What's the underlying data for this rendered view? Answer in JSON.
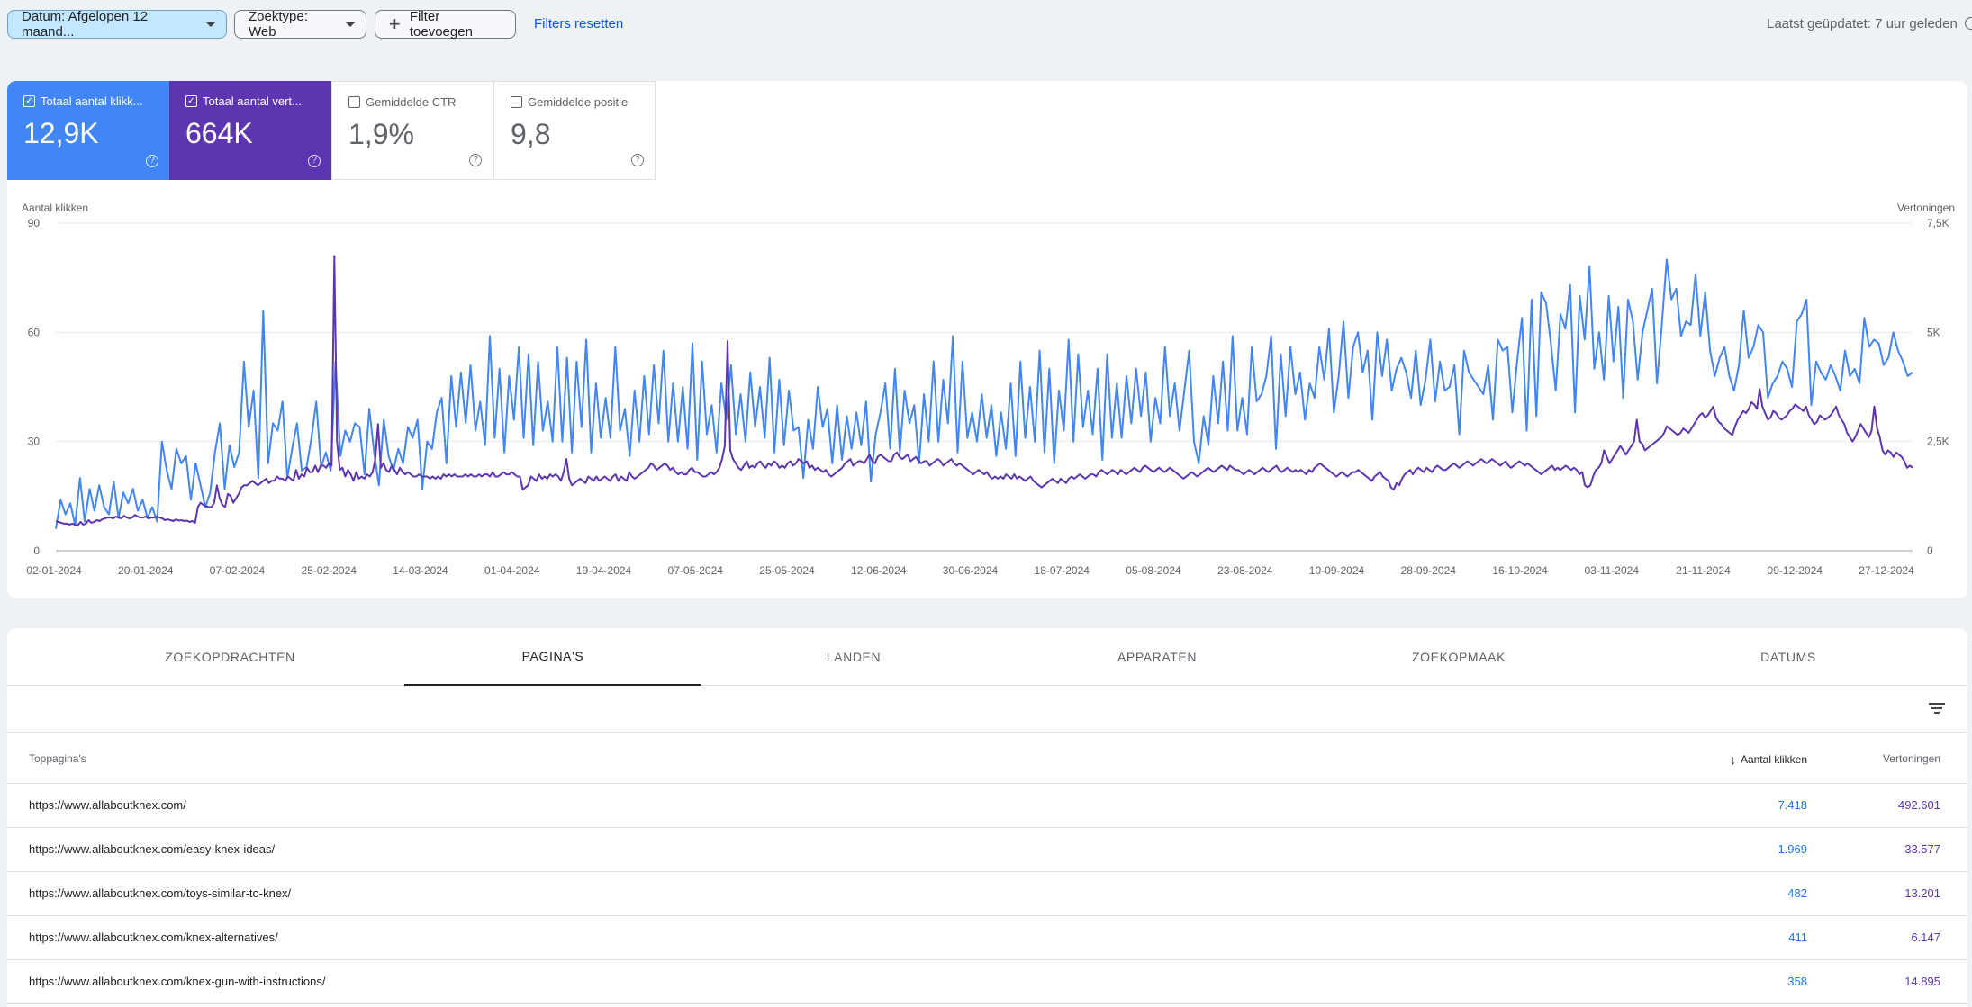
{
  "filters": {
    "date_chip": "Datum: Afgelopen 12 maand...",
    "searchtype_chip": "Zoektype: Web",
    "add_filter": "Filter toevoegen",
    "reset": "Filters resetten",
    "last_updated": "Laatst geüpdatet: 7 uur geleden"
  },
  "metrics": [
    {
      "label": "Totaal aantal klikk...",
      "value": "12,9K",
      "checked": true,
      "color": "#4285f4"
    },
    {
      "label": "Totaal aantal vert...",
      "value": "664K",
      "checked": true,
      "color": "#5e35b1"
    },
    {
      "label": "Gemiddelde CTR",
      "value": "1,9%",
      "checked": false
    },
    {
      "label": "Gemiddelde positie",
      "value": "9,8",
      "checked": false
    }
  ],
  "chart_data": {
    "type": "line",
    "left_axis_label": "Aantal klikken",
    "right_axis_label": "Vertoningen",
    "left_ticks": [
      "90",
      "60",
      "30",
      "0"
    ],
    "right_ticks": [
      "7,5K",
      "5K",
      "2,5K",
      "0"
    ],
    "ylim_left": [
      0,
      90
    ],
    "ylim_right": [
      0,
      7500
    ],
    "x_tick_labels": [
      "02-01-2024",
      "20-01-2024",
      "07-02-2024",
      "25-02-2024",
      "14-03-2024",
      "01-04-2024",
      "19-04-2024",
      "07-05-2024",
      "25-05-2024",
      "12-06-2024",
      "30-06-2024",
      "18-07-2024",
      "05-08-2024",
      "23-08-2024",
      "10-09-2024",
      "28-09-2024",
      "16-10-2024",
      "03-11-2024",
      "21-11-2024",
      "09-12-2024",
      "27-12-2024"
    ],
    "series": [
      {
        "name": "Aantal klikken",
        "color": "#4285f4",
        "axis": "left",
        "values": [
          6,
          14,
          10,
          13,
          7,
          20,
          8,
          17,
          11,
          18,
          12,
          10,
          19,
          9,
          16,
          13,
          17,
          11,
          14,
          9,
          12,
          8,
          30,
          22,
          17,
          28,
          24,
          26,
          14,
          24,
          18,
          12,
          16,
          27,
          35,
          17,
          29,
          23,
          27,
          52,
          34,
          44,
          20,
          66,
          24,
          35,
          33,
          41,
          20,
          28,
          35,
          22,
          23,
          31,
          41,
          23,
          27,
          22,
          52,
          26,
          33,
          30,
          35,
          34,
          21,
          39,
          27,
          18,
          36,
          26,
          22,
          28,
          24,
          34,
          31,
          36,
          17,
          30,
          28,
          38,
          42,
          24,
          48,
          34,
          49,
          35,
          51,
          33,
          41,
          29,
          59,
          31,
          50,
          27,
          48,
          36,
          56,
          31,
          54,
          29,
          52,
          33,
          41,
          30,
          56,
          30,
          53,
          27,
          52,
          34,
          58,
          27,
          46,
          31,
          42,
          31,
          56,
          33,
          39,
          26,
          44,
          30,
          48,
          32,
          51,
          35,
          55,
          30,
          46,
          30,
          45,
          28,
          57,
          25,
          52,
          32,
          40,
          27,
          46,
          36,
          51,
          32,
          43,
          30,
          49,
          34,
          45,
          31,
          53,
          27,
          47,
          29,
          44,
          33,
          34,
          20,
          36,
          28,
          45,
          34,
          39,
          24,
          40,
          25,
          37,
          28,
          38,
          29,
          41,
          19,
          32,
          38,
          46,
          28,
          50,
          27,
          44,
          35,
          40,
          24,
          43,
          30,
          52,
          30,
          47,
          35,
          59,
          27,
          52,
          31,
          38,
          30,
          43,
          31,
          40,
          26,
          38,
          28,
          46,
          26,
          52,
          31,
          45,
          30,
          55,
          27,
          50,
          24,
          44,
          33,
          58,
          30,
          54,
          34,
          44,
          32,
          50,
          25,
          54,
          31,
          46,
          31,
          48,
          35,
          50,
          37,
          49,
          30,
          42,
          35,
          56,
          37,
          46,
          33,
          44,
          55,
          30,
          24,
          37,
          29,
          48,
          35,
          52,
          33,
          59,
          33,
          42,
          32,
          56,
          41,
          43,
          48,
          59,
          28,
          54,
          37,
          56,
          43,
          49,
          36,
          46,
          42,
          56,
          47,
          61,
          38,
          48,
          63,
          42,
          56,
          60,
          49,
          55,
          36,
          60,
          48,
          58,
          44,
          50,
          53,
          49,
          42,
          55,
          40,
          47,
          58,
          41,
          52,
          44,
          45,
          51,
          32,
          55,
          49,
          47,
          45,
          43,
          51,
          36,
          58,
          55,
          56,
          38,
          52,
          64,
          33,
          69,
          37,
          71,
          68,
          57,
          44,
          65,
          61,
          73,
          38,
          70,
          58,
          78,
          50,
          60,
          47,
          70,
          52,
          67,
          42,
          69,
          63,
          47,
          60,
          66,
          72,
          46,
          62,
          80,
          69,
          72,
          59,
          63,
          62,
          76,
          59,
          71,
          55,
          48,
          53,
          56,
          48,
          44,
          51,
          66,
          53,
          56,
          62,
          60,
          42,
          46,
          48,
          52,
          50,
          45,
          63,
          65,
          69,
          40,
          52,
          49,
          47,
          51,
          48,
          44,
          55,
          48,
          50,
          46,
          64,
          56,
          58,
          57,
          51,
          53,
          60,
          55,
          52,
          48,
          49
        ]
      },
      {
        "name": "Vertoningen",
        "color": "#5e35b1",
        "axis": "right",
        "values": [
          680,
          660,
          640,
          620,
          620,
          600,
          620,
          600,
          580,
          660,
          600,
          620,
          700,
          640,
          660,
          700,
          680,
          720,
          740,
          760,
          760,
          740,
          780,
          760,
          740,
          800,
          760,
          740,
          760,
          820,
          780,
          760,
          760,
          780,
          740,
          760,
          760,
          780,
          760,
          740,
          700,
          720,
          700,
          680,
          720,
          690,
          700,
          680,
          690,
          660,
          680,
          640,
          1000,
          1100,
          1050,
          1020,
          1000,
          1000,
          1100,
          1500,
          1200,
          1050,
          1000,
          1300,
          1250,
          1100,
          1200,
          1300,
          1450,
          1500,
          1500,
          1550,
          1600,
          1550,
          1500,
          1550,
          1600,
          1650,
          1550,
          1600,
          1600,
          1700,
          1650,
          1650,
          1600,
          1700,
          1650,
          1600,
          1850,
          1650,
          1750,
          1700,
          1900,
          1800,
          1800,
          1950,
          1800,
          1950,
          1950,
          1900,
          2000,
          1950,
          6750,
          2500,
          1850,
          1900,
          1700,
          1850,
          1750,
          1600,
          1800,
          1650,
          1700,
          1650,
          1750,
          1700,
          1800,
          2100,
          2900,
          1900,
          2000,
          1850,
          1800,
          1950,
          1850,
          1750,
          1900,
          1800,
          1750,
          1800,
          1750,
          1700,
          1700,
          1750,
          1700,
          1700,
          1700,
          1650,
          1700,
          1650,
          1700,
          1650,
          1750,
          1700,
          1750,
          1700,
          1750,
          1700,
          1700,
          1700,
          1750,
          1700,
          1750,
          1700,
          1700,
          1750,
          1700,
          1750,
          1750,
          1700,
          1800,
          1700,
          1700,
          1750,
          1800,
          1750,
          1750,
          1800,
          1750,
          1700,
          1700,
          1400,
          1450,
          1500,
          1700,
          1650,
          1600,
          1750,
          1650,
          1700,
          1650,
          1750,
          1700,
          1750,
          1700,
          1600,
          1800,
          2100,
          1650,
          1500,
          1550,
          1600,
          1650,
          1600,
          1550,
          1700,
          1650,
          1600,
          1700,
          1600,
          1650,
          1700,
          1650,
          1600,
          1700,
          1750,
          1600,
          1700,
          1650,
          1600,
          1800,
          1700,
          1650,
          1700,
          1750,
          1800,
          1850,
          1900,
          2000,
          1950,
          1850,
          1900,
          1950,
          2000,
          1950,
          1850,
          1900,
          1800,
          1750,
          1800,
          1750,
          1750,
          1850,
          1900,
          1800,
          1800,
          1750,
          1700,
          1700,
          1750,
          1800,
          1750,
          1800,
          1900,
          2100,
          2400,
          4800,
          2300,
          2100,
          2000,
          1900,
          1850,
          1950,
          2050,
          1900,
          1950,
          1900,
          2000,
          2050,
          1950,
          1900,
          2000,
          1950,
          2050,
          2000,
          1900,
          1950,
          1900,
          2000,
          2050,
          1950,
          2000,
          2100,
          2050,
          2000,
          2050,
          1900,
          1950,
          1850,
          1900,
          1850,
          1800,
          1850,
          1750,
          1700,
          1750,
          1800,
          1850,
          1900,
          2000,
          2050,
          2100,
          1950,
          2000,
          2050,
          2050,
          2000,
          2100,
          2200,
          2050,
          2000,
          2150,
          2200,
          2150,
          2100,
          2050,
          2050,
          2200,
          2250,
          2150,
          2100,
          2150,
          2200,
          2050,
          2100,
          2150,
          2050,
          2000,
          2050,
          2050,
          1950,
          2000,
          2050,
          2100,
          2050,
          1950,
          2000,
          2050,
          2100,
          2000,
          1950,
          2000,
          1950,
          1900,
          1850,
          1800,
          1750,
          1800,
          1850,
          1800,
          1750,
          1800,
          1700,
          1650,
          1700,
          1650,
          1700,
          1650,
          1750,
          1700,
          1650,
          1750,
          1650,
          1700,
          1650,
          1600,
          1650,
          1700,
          1600,
          1550,
          1500,
          1450,
          1500,
          1550,
          1600,
          1650,
          1600,
          1550,
          1650,
          1600,
          1550,
          1650,
          1700,
          1650,
          1700,
          1750,
          1700,
          1650,
          1700,
          1750,
          1750,
          1700,
          1800,
          1850,
          1800,
          1750,
          1800,
          1850,
          1800,
          1750,
          1850,
          1800,
          1750,
          1800,
          1850,
          1900,
          1850,
          1800,
          1900,
          1950,
          1900,
          1850,
          1800,
          1850,
          1900,
          1850,
          1800,
          1850,
          1900,
          1850,
          1800,
          1750,
          1700,
          1650,
          1700,
          1750,
          1800,
          1750,
          1700,
          1750,
          1800,
          1850,
          1900,
          1850,
          1800,
          1850,
          1900,
          1950,
          1900,
          1850,
          1950,
          1900,
          1850,
          1850,
          1800,
          1750,
          1800,
          1850,
          1800,
          1750,
          1800,
          1850,
          1900,
          1850,
          1800,
          1850,
          1900,
          1950,
          1850,
          1800,
          1850,
          1900,
          1850,
          1800,
          1850,
          1800,
          1850,
          1800,
          1750,
          1850,
          1800,
          1900,
          1950,
          2000,
          1950,
          1900,
          1850,
          1800,
          1750,
          1700,
          1750,
          1800,
          1750,
          1700,
          1750,
          1800,
          1800,
          1850,
          1800,
          1750,
          1700,
          1650,
          1600,
          1700,
          1750,
          1800,
          1700,
          1650,
          1600,
          1450,
          1400,
          1550,
          1500,
          1650,
          1750,
          1800,
          1850,
          1750,
          1850,
          1900,
          1850,
          1800,
          1900,
          1850,
          1800,
          1900,
          1950,
          1900,
          1850,
          1850,
          1900,
          1950,
          2000,
          1950,
          1900,
          1950,
          2000,
          2050,
          2000,
          1950,
          2000,
          2050,
          2100,
          2050,
          2000,
          2050,
          2100,
          2050,
          2000,
          1950,
          2000,
          2050,
          1950,
          1900,
          1950,
          2000,
          2050,
          2000,
          1950,
          2000,
          1950,
          1900,
          1850,
          1800,
          1750,
          1800,
          1850,
          1900,
          1950,
          1850,
          1900,
          1850,
          1900,
          1950,
          1900,
          1850,
          1900,
          1850,
          1750,
          1800,
          1500,
          1450,
          1500,
          1700,
          1850,
          1900,
          2000,
          2300,
          2150,
          2000,
          2100,
          2200,
          2300,
          2400,
          2300,
          2200,
          2300,
          2400,
          2500,
          3000,
          2500,
          2450,
          2300,
          2350,
          2400,
          2450,
          2500,
          2550,
          2600,
          2700,
          2850,
          2800,
          2750,
          2700,
          2650,
          2700,
          2800,
          2750,
          2700,
          2800,
          2900,
          3000,
          3100,
          3150,
          3050,
          3100,
          3200,
          3300,
          3050,
          2950,
          2900,
          2800,
          2750,
          2700,
          2650,
          2850,
          3000,
          3100,
          3200,
          3150,
          3250,
          3400,
          3350,
          3250,
          3700,
          3300,
          3150,
          3000,
          3050,
          3200,
          3150,
          3050,
          3000,
          3050,
          3100,
          3200,
          3250,
          3350,
          3300,
          3250,
          3200,
          3300,
          3100,
          3000,
          2900,
          2950,
          3100,
          3050,
          3000,
          3050,
          3100,
          3200,
          3300,
          3100,
          3000,
          2900,
          2700,
          2600,
          2500,
          2600,
          2750,
          2900,
          2800,
          2700,
          2600,
          2750,
          3300,
          2800,
          2600,
          2300,
          2200,
          2300,
          2250,
          2150,
          2250,
          2200,
          2150,
          2050,
          1900,
          1950,
          1900
        ]
      }
    ]
  },
  "tabs": [
    "ZOEKOPDRACHTEN",
    "PAGINA'S",
    "LANDEN",
    "APPARATEN",
    "ZOEKOPMAAK",
    "DATUMS"
  ],
  "table": {
    "col_page": "Toppagina's",
    "col_clicks": "Aantal klikken",
    "col_impr": "Vertoningen",
    "rows": [
      {
        "url": "https://www.allaboutknex.com/",
        "clicks": "7.418",
        "impressions": "492.601"
      },
      {
        "url": "https://www.allaboutknex.com/easy-knex-ideas/",
        "clicks": "1.969",
        "impressions": "33.577"
      },
      {
        "url": "https://www.allaboutknex.com/toys-similar-to-knex/",
        "clicks": "482",
        "impressions": "13.201"
      },
      {
        "url": "https://www.allaboutknex.com/knex-alternatives/",
        "clicks": "411",
        "impressions": "6.147"
      },
      {
        "url": "https://www.allaboutknex.com/knex-gun-with-instructions/",
        "clicks": "358",
        "impressions": "14.895"
      }
    ]
  }
}
